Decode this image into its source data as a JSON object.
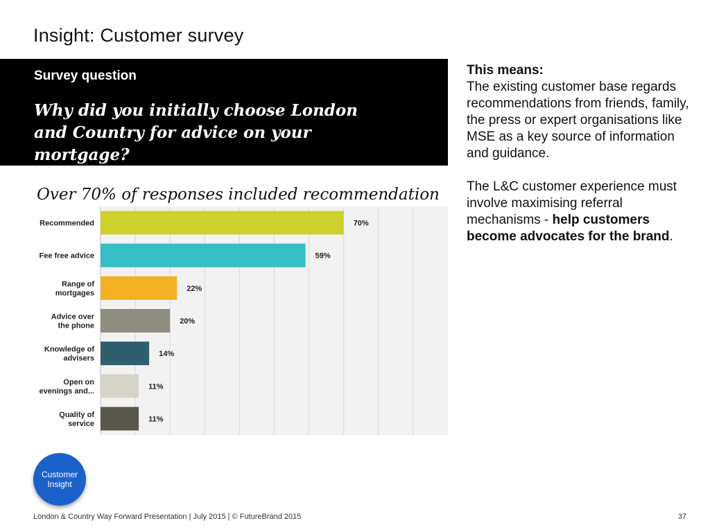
{
  "page": {
    "title": "Insight: Customer survey",
    "footer": "London & Country Way Forward Presentation  |  July 2015  |  © FutureBrand 2015",
    "page_number": "37"
  },
  "question": {
    "label": "Survey question",
    "text": "Why did you initially choose London and Country for advice on your mortgage?"
  },
  "means": {
    "heading": "This means:",
    "paragraph1": "The existing customer base regards recommendations from friends, family, the press or expert organisations like MSE as a key source of information and guidance.",
    "paragraph2_lead": "The L&C customer experience must involve maximising referral mechanisms - ",
    "paragraph2_bold": "help customers become advocates for the brand",
    "paragraph2_end": "."
  },
  "badge": {
    "line1": "Customer",
    "line2": "Insight"
  },
  "chart_data": {
    "type": "bar",
    "orientation": "horizontal",
    "title": "Over 70% of responses included recommendation",
    "xlabel": "",
    "ylabel": "",
    "xlim": [
      0,
      100
    ],
    "grid": true,
    "legend": "none",
    "categories": [
      [
        "Recommended"
      ],
      [
        "Fee free advice"
      ],
      [
        "Range of",
        "mortgages"
      ],
      [
        "Advice over",
        "the phone"
      ],
      [
        "Knowledge of",
        "advisers"
      ],
      [
        "Open on",
        "evenings and..."
      ],
      [
        "Quality of",
        "service"
      ]
    ],
    "values": [
      70,
      59,
      22,
      20,
      14,
      11,
      11
    ],
    "value_labels": [
      "70%",
      "59%",
      "22%",
      "20%",
      "14%",
      "11%",
      "11%"
    ],
    "colors": [
      "#cdd12b",
      "#35bec4",
      "#f4b023",
      "#8e8d80",
      "#2f5f6c",
      "#d6d4c6",
      "#5a584c"
    ]
  }
}
